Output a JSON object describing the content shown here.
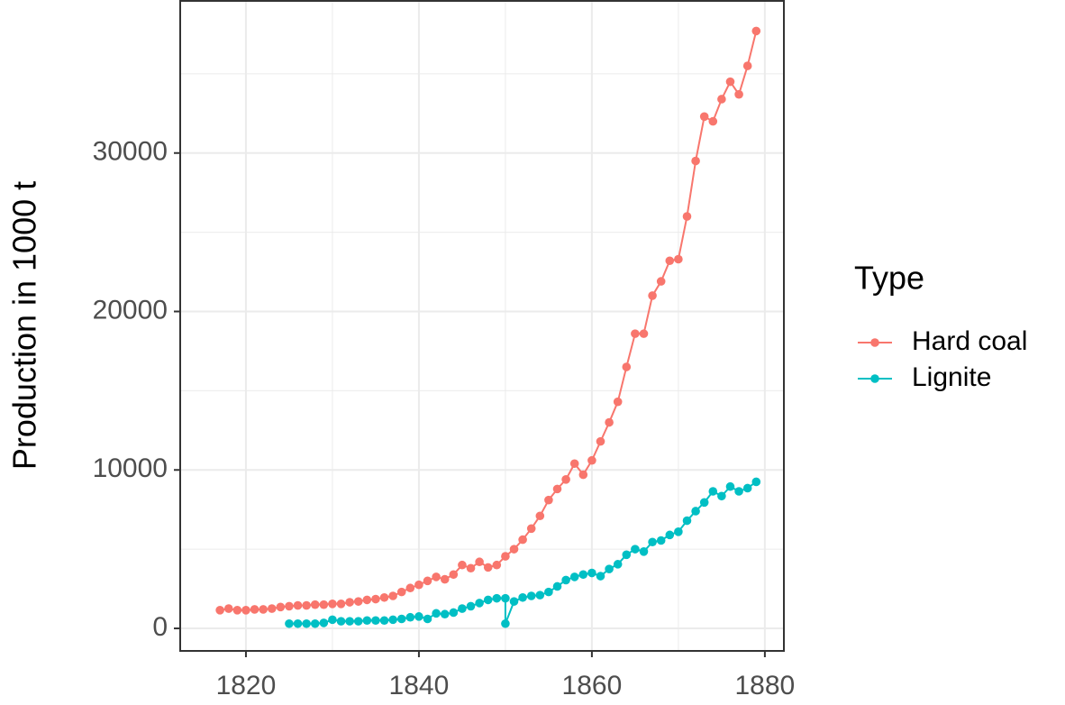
{
  "chart_data": {
    "type": "line",
    "y_label": "Production in 1000 t",
    "legend_title": "Type",
    "legend": "right",
    "grid": true,
    "xlim": [
      1812.4,
      1882.2
    ],
    "xticks": [
      1820,
      1840,
      1860,
      1880
    ],
    "minor_xticks": [
      1830,
      1850,
      1870
    ],
    "ylim": [
      -1420,
      39600
    ],
    "yticks": [
      0,
      10000,
      20000,
      30000
    ],
    "minor_yticks": [
      5000,
      15000,
      25000,
      35000
    ],
    "series": [
      {
        "name": "Hard coal",
        "color": "#F8766D",
        "x": [
          1817,
          1818,
          1819,
          1820,
          1821,
          1822,
          1823,
          1824,
          1825,
          1826,
          1827,
          1828,
          1829,
          1830,
          1831,
          1832,
          1833,
          1834,
          1835,
          1836,
          1837,
          1838,
          1839,
          1840,
          1841,
          1842,
          1843,
          1844,
          1845,
          1846,
          1847,
          1848,
          1849,
          1850,
          1851,
          1852,
          1853,
          1854,
          1855,
          1856,
          1857,
          1858,
          1859,
          1860,
          1861,
          1862,
          1863,
          1864,
          1865,
          1866,
          1867,
          1868,
          1869,
          1870,
          1871,
          1872,
          1873,
          1874,
          1875,
          1876,
          1877,
          1878,
          1879
        ],
        "values": [
          1150,
          1250,
          1150,
          1150,
          1200,
          1200,
          1250,
          1350,
          1400,
          1450,
          1450,
          1500,
          1500,
          1550,
          1550,
          1650,
          1700,
          1800,
          1850,
          1950,
          2050,
          2300,
          2550,
          2750,
          3000,
          3250,
          3100,
          3400,
          4000,
          3800,
          4200,
          3850,
          4000,
          4550,
          5000,
          5600,
          6300,
          7100,
          8100,
          8800,
          9400,
          10400,
          9700,
          10600,
          11800,
          13000,
          14300,
          16500,
          18600,
          18600,
          21000,
          21900,
          23200,
          23300,
          26000,
          29500,
          32300,
          32000,
          33400,
          34500,
          33700,
          35500,
          37700
        ]
      },
      {
        "name": "Lignite",
        "color": "#00BFC4",
        "x": [
          1825,
          1826,
          1827,
          1828,
          1829,
          1830,
          1831,
          1832,
          1833,
          1834,
          1835,
          1836,
          1837,
          1838,
          1839,
          1840,
          1841,
          1842,
          1843,
          1844,
          1845,
          1846,
          1847,
          1848,
          1849,
          1850,
          1850,
          1851,
          1852,
          1853,
          1854,
          1855,
          1856,
          1857,
          1858,
          1859,
          1860,
          1861,
          1862,
          1863,
          1864,
          1865,
          1866,
          1867,
          1868,
          1869,
          1870,
          1871,
          1872,
          1873,
          1874,
          1875,
          1876,
          1877,
          1878,
          1879
        ],
        "values": [
          300,
          300,
          300,
          300,
          350,
          550,
          450,
          450,
          450,
          500,
          500,
          500,
          550,
          600,
          700,
          750,
          600,
          950,
          900,
          1000,
          1250,
          1400,
          1600,
          1800,
          1900,
          1900,
          300,
          1700,
          1950,
          2050,
          2100,
          2300,
          2650,
          3050,
          3250,
          3400,
          3500,
          3300,
          3750,
          4050,
          4650,
          5000,
          4850,
          5450,
          5550,
          5900,
          6100,
          6800,
          7400,
          7950,
          8650,
          8350,
          8950,
          8650,
          8850,
          9250
        ]
      }
    ]
  }
}
